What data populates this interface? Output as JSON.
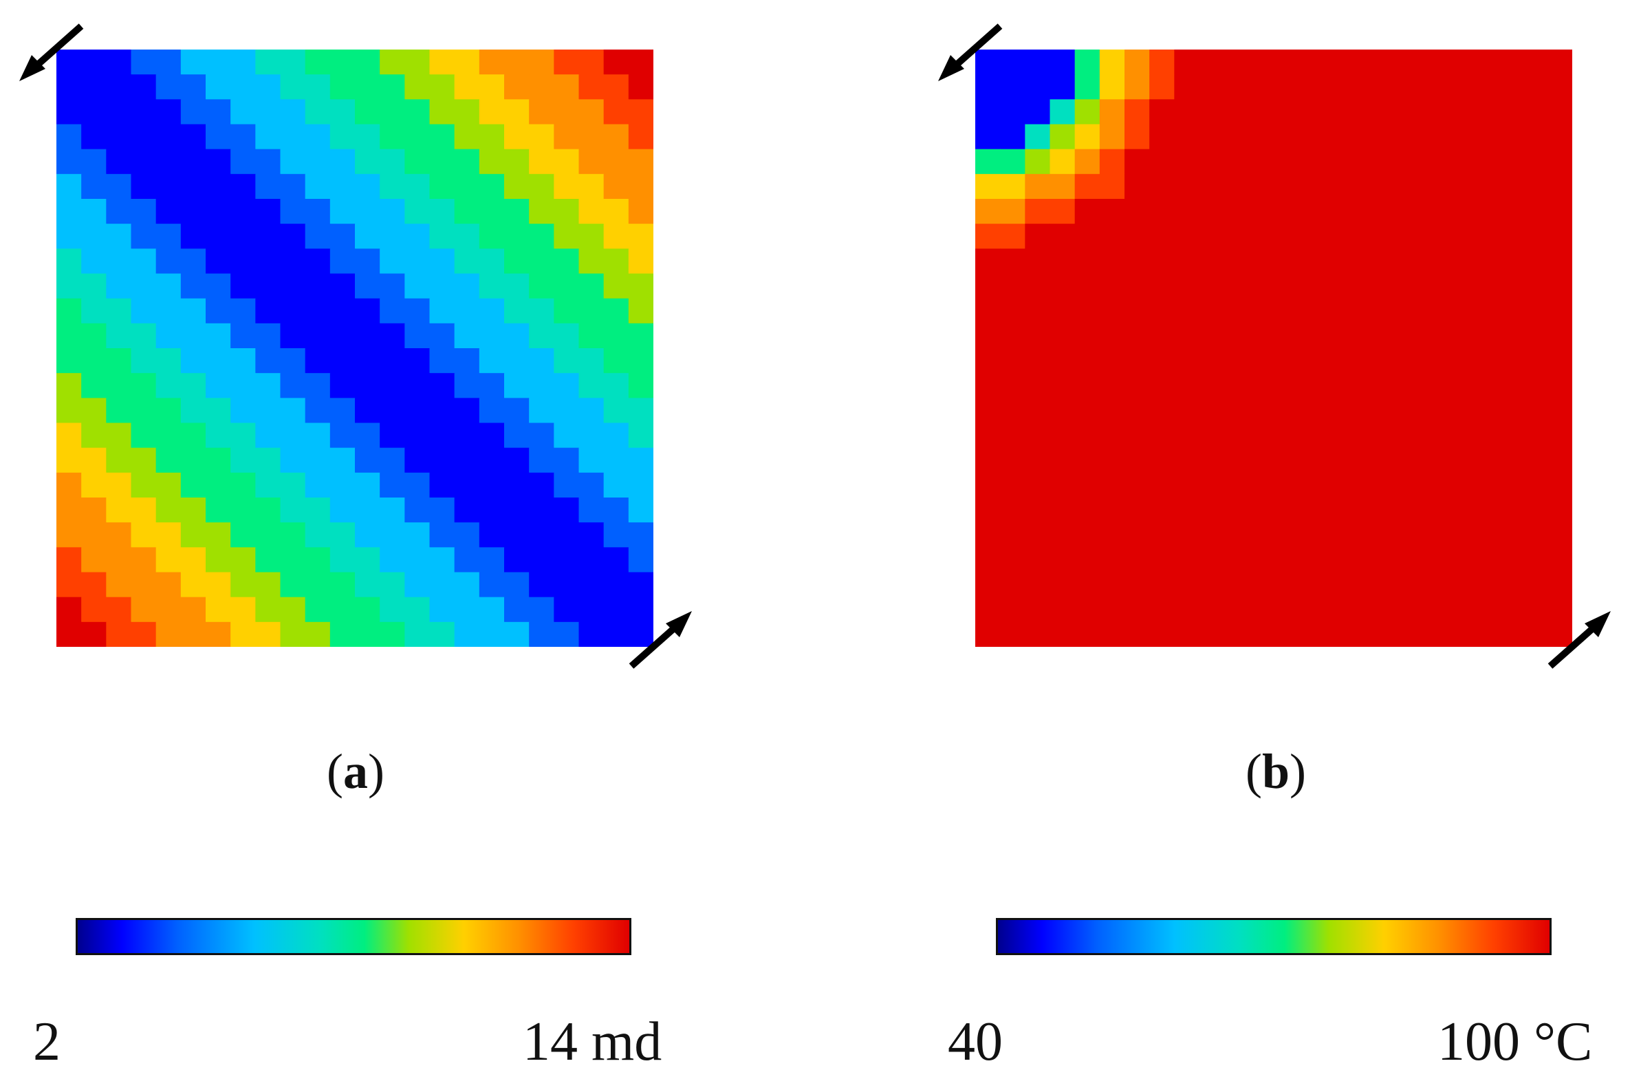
{
  "panels": [
    {
      "id": "a",
      "caption_letter": "a",
      "field": "permeability",
      "pattern": "diagonal bands from top-left (well) to bottom-right (well); low values along the main diagonal, high values at top-right and bottom-left corners",
      "colorbar": {
        "min_label": "2",
        "max_label": "14 md",
        "min": 2,
        "max": 14
      }
    },
    {
      "id": "b",
      "caption_letter": "b",
      "field": "temperature",
      "pattern": "mostly hot (red) with a small cooled region at the top-left injection corner",
      "colorbar": {
        "min_label": "40",
        "max_label": "100 °C",
        "min": 40,
        "max": 100
      }
    }
  ],
  "colors": {
    "colormap": [
      "#00008f",
      "#0000ff",
      "#0060ff",
      "#00c0ff",
      "#00e0c0",
      "#00ee80",
      "#a0e000",
      "#ffd000",
      "#ff9000",
      "#ff4000",
      "#e00000"
    ],
    "arrow": "#000000",
    "text": "#111111"
  },
  "arrows": {
    "injection": "arrow-out-top-left",
    "production": "arrow-out-bottom-right"
  }
}
